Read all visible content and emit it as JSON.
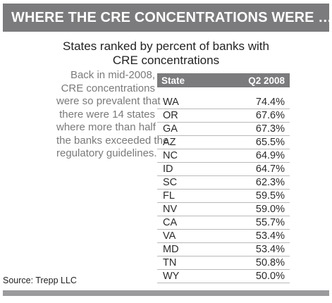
{
  "banner_title": "WHERE THE CRE CONCENTRATIONS WERE …",
  "subtitle_lines": [
    "States ranked by percent of banks with",
    "CRE concentrations"
  ],
  "side_text_lines": [
    "Back in mid-2008,",
    "CRE concentrations",
    "were so prevalent that",
    "there were 14 states",
    "where more than half",
    "the banks exceeded the",
    "regulatory guidelines."
  ],
  "colors": {
    "header_bg": "#7b7b7d",
    "side_text": "#7a7a7a",
    "bottom_bar": "#9b9b9d"
  },
  "chart_data": {
    "type": "table",
    "columns": [
      "State",
      "Q2 2008"
    ],
    "rows": [
      {
        "state": "WA",
        "value": "74.4%"
      },
      {
        "state": "OR",
        "value": "67.6%"
      },
      {
        "state": "GA",
        "value": "67.3%"
      },
      {
        "state": "AZ",
        "value": "65.5%"
      },
      {
        "state": "NC",
        "value": "64.9%"
      },
      {
        "state": "ID",
        "value": "64.7%"
      },
      {
        "state": "SC",
        "value": "62.3%"
      },
      {
        "state": "FL",
        "value": "59.5%"
      },
      {
        "state": "NV",
        "value": "59.0%"
      },
      {
        "state": "CA",
        "value": "55.7%"
      },
      {
        "state": "VA",
        "value": "53.4%"
      },
      {
        "state": "MD",
        "value": "53.4%"
      },
      {
        "state": "TN",
        "value": "50.8%"
      },
      {
        "state": "WY",
        "value": "50.0%"
      }
    ]
  },
  "source": "Source: Trepp LLC"
}
